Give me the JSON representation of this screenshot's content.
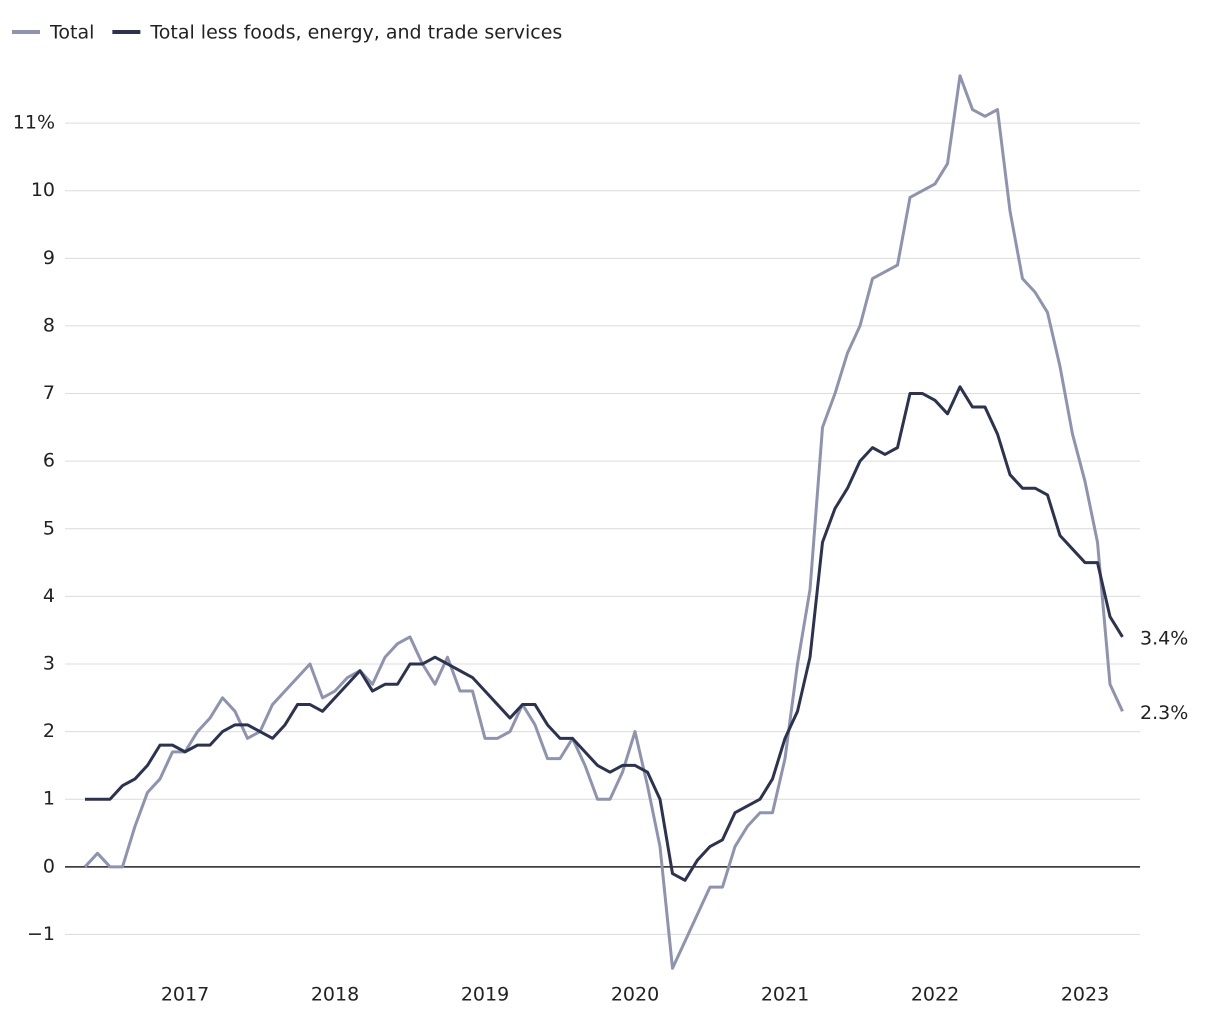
{
  "chart_data": {
    "type": "line",
    "categories": [
      null,
      null,
      null,
      null,
      null,
      null,
      null,
      null,
      "2017",
      null,
      null,
      null,
      null,
      null,
      null,
      null,
      null,
      null,
      null,
      null,
      "2018",
      null,
      null,
      null,
      null,
      null,
      null,
      null,
      null,
      null,
      null,
      null,
      "2019",
      null,
      null,
      null,
      null,
      null,
      null,
      null,
      null,
      null,
      null,
      null,
      "2020",
      null,
      null,
      null,
      null,
      null,
      null,
      null,
      null,
      null,
      null,
      null,
      "2021",
      null,
      null,
      null,
      null,
      null,
      null,
      null,
      null,
      null,
      null,
      null,
      "2022",
      null,
      null,
      null,
      null,
      null,
      null,
      null,
      null,
      null,
      null,
      null,
      "2023",
      null,
      null,
      null
    ],
    "series": [
      {
        "name": "Total",
        "color": "#8e93b0",
        "values": [
          0.0,
          0.2,
          0.0,
          0.0,
          0.6,
          1.1,
          1.3,
          1.7,
          1.7,
          2.0,
          2.2,
          2.5,
          2.3,
          1.9,
          2.0,
          2.4,
          2.6,
          2.8,
          3.0,
          2.5,
          2.6,
          2.8,
          2.9,
          2.7,
          3.1,
          3.3,
          3.4,
          3.0,
          2.7,
          3.1,
          2.6,
          2.6,
          1.9,
          1.9,
          2.0,
          2.4,
          2.1,
          1.6,
          1.6,
          1.9,
          1.5,
          1.0,
          1.0,
          1.4,
          2.0,
          1.2,
          0.3,
          -1.5,
          -1.1,
          -0.7,
          -0.3,
          -0.3,
          0.3,
          0.6,
          0.8,
          0.8,
          1.6,
          3.0,
          4.1,
          6.5,
          7.0,
          7.6,
          8.0,
          8.7,
          8.8,
          8.9,
          9.9,
          10.0,
          10.1,
          10.4,
          11.7,
          11.2,
          11.1,
          11.2,
          9.7,
          8.7,
          8.5,
          8.2,
          7.4,
          6.4,
          5.7,
          4.8,
          2.7,
          2.3
        ],
        "value_labels": [
          null,
          null,
          null,
          null,
          null,
          null,
          null,
          null,
          null,
          null,
          null,
          null,
          null,
          null,
          null,
          null,
          null,
          null,
          null,
          null,
          null,
          null,
          null,
          null,
          null,
          null,
          null,
          null,
          null,
          null,
          null,
          null,
          null,
          null,
          null,
          null,
          null,
          null,
          null,
          null,
          null,
          null,
          null,
          null,
          null,
          null,
          null,
          null,
          null,
          null,
          null,
          null,
          null,
          null,
          null,
          null,
          null,
          null,
          null,
          null,
          null,
          null,
          null,
          null,
          null,
          null,
          null,
          null,
          null,
          null,
          null,
          null,
          null,
          null,
          null,
          null,
          null,
          null,
          null,
          null,
          null,
          null,
          null,
          "2.3%"
        ]
      },
      {
        "name": "Total less foods, energy, and trade services",
        "color": "#2b3350",
        "values": [
          1.0,
          1.0,
          1.0,
          1.2,
          1.3,
          1.5,
          1.8,
          1.8,
          1.7,
          1.8,
          1.8,
          2.0,
          2.1,
          2.1,
          2.0,
          1.9,
          2.1,
          2.4,
          2.4,
          2.3,
          2.5,
          2.7,
          2.9,
          2.6,
          2.7,
          2.7,
          3.0,
          3.0,
          3.1,
          3.0,
          2.9,
          2.8,
          2.6,
          2.4,
          2.2,
          2.4,
          2.4,
          2.1,
          1.9,
          1.9,
          1.7,
          1.5,
          1.4,
          1.5,
          1.5,
          1.4,
          1.0,
          -0.1,
          -0.2,
          0.1,
          0.3,
          0.4,
          0.8,
          0.9,
          1.0,
          1.3,
          1.9,
          2.3,
          3.1,
          4.8,
          5.3,
          5.6,
          6.0,
          6.2,
          6.1,
          6.2,
          7.0,
          7.0,
          6.9,
          6.7,
          7.1,
          6.8,
          6.8,
          6.4,
          5.8,
          5.6,
          5.6,
          5.5,
          4.9,
          4.7,
          4.5,
          4.5,
          3.7,
          3.4
        ],
        "value_labels": [
          null,
          null,
          null,
          null,
          null,
          null,
          null,
          null,
          null,
          null,
          null,
          null,
          null,
          null,
          null,
          null,
          null,
          null,
          null,
          null,
          null,
          null,
          null,
          null,
          null,
          null,
          null,
          null,
          null,
          null,
          null,
          null,
          null,
          null,
          null,
          null,
          null,
          null,
          null,
          null,
          null,
          null,
          null,
          null,
          null,
          null,
          null,
          null,
          null,
          null,
          null,
          null,
          null,
          null,
          null,
          null,
          null,
          null,
          null,
          null,
          null,
          null,
          null,
          null,
          null,
          null,
          null,
          null,
          null,
          null,
          null,
          null,
          null,
          null,
          null,
          null,
          null,
          null,
          null,
          null,
          null,
          null,
          null,
          "3.4%"
        ]
      }
    ],
    "ylim": [
      -1.6,
      11.8
    ],
    "yticks": [
      {
        "value": -1,
        "label": "−1"
      },
      0,
      1,
      2,
      3,
      4,
      5,
      6,
      7,
      8,
      9,
      10,
      {
        "value": 11,
        "label": "11%"
      }
    ],
    "grid": true
  }
}
